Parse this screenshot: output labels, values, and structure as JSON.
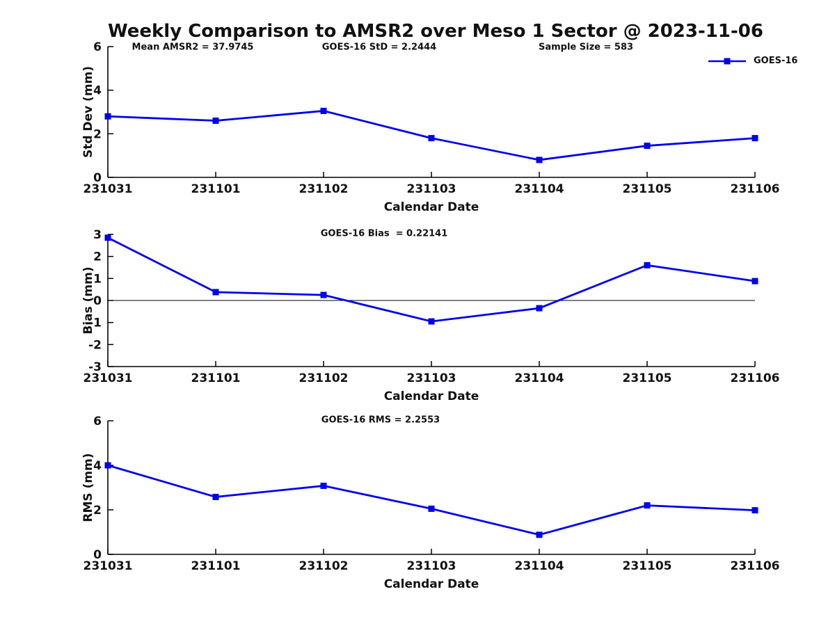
{
  "page": {
    "title": "Weekly Comparison to AMSR2 over Meso 1 Sector @ 2023-11-06"
  },
  "colors": {
    "line": "#0000ee",
    "axis": "#000000",
    "text": "#111111"
  },
  "legend": {
    "label": "GOES-16",
    "position": "top-right"
  },
  "chart_data": [
    {
      "type": "line",
      "name": "std-dev",
      "ylabel": "Std Dev (mm)",
      "xlabel": "Calendar Date",
      "categories": [
        "231031",
        "231101",
        "231102",
        "231103",
        "231104",
        "231105",
        "231106"
      ],
      "series": [
        {
          "name": "GOES-16",
          "values": [
            2.8,
            2.6,
            3.05,
            1.8,
            0.8,
            1.45,
            1.8
          ]
        }
      ],
      "ylim": [
        0,
        6
      ],
      "yticks": [
        0,
        2,
        4,
        6
      ],
      "grid": false,
      "zero_line": false,
      "annotations": [
        "Mean AMSR2 = 37.9745",
        "GOES-16 StD = 2.2444",
        "Sample Size = 583"
      ]
    },
    {
      "type": "line",
      "name": "bias",
      "ylabel": "Bias (mm)",
      "xlabel": "Calendar Date",
      "categories": [
        "231031",
        "231101",
        "231102",
        "231103",
        "231104",
        "231105",
        "231106"
      ],
      "series": [
        {
          "name": "GOES-16",
          "values": [
            2.85,
            0.38,
            0.25,
            -0.95,
            -0.35,
            1.6,
            0.88
          ]
        }
      ],
      "ylim": [
        -3,
        3
      ],
      "yticks": [
        -3,
        -2,
        -1,
        0,
        1,
        2,
        3
      ],
      "grid": false,
      "zero_line": true,
      "annotations": [
        "GOES-16 Bias  = 0.22141"
      ]
    },
    {
      "type": "line",
      "name": "rms",
      "ylabel": "RMS (mm)",
      "xlabel": "Calendar Date",
      "categories": [
        "231031",
        "231101",
        "231102",
        "231103",
        "231104",
        "231105",
        "231106"
      ],
      "series": [
        {
          "name": "GOES-16",
          "values": [
            4.0,
            2.58,
            3.08,
            2.05,
            0.88,
            2.2,
            1.98
          ]
        }
      ],
      "ylim": [
        0,
        6
      ],
      "yticks": [
        0,
        2,
        4,
        6
      ],
      "grid": false,
      "zero_line": false,
      "annotations": [
        "GOES-16 RMS = 2.2553"
      ]
    }
  ]
}
